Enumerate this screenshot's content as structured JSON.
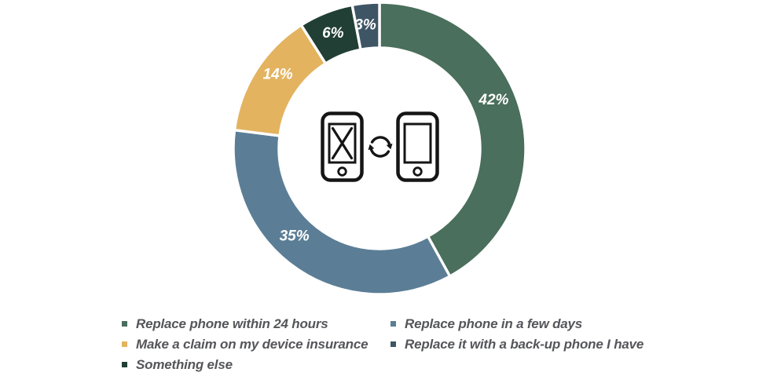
{
  "background": "#ffffff",
  "chart_data": {
    "type": "pie",
    "subtype": "donut",
    "title": "",
    "unit": "%",
    "start_angle_deg": 0,
    "direction": "clockwise",
    "donut_hole_ratio": 0.69,
    "grid": false,
    "legend_position": "bottom",
    "legend_order": [
      0,
      1,
      2,
      4,
      3
    ],
    "center_icon": "broken-phone-sync-replacement",
    "slice_gap_color": "#ffffff",
    "data_label_color": "#ffffff",
    "series": [
      {
        "label": "Replace phone within 24 hours",
        "value": 42,
        "data_label": "42%",
        "color": "#4a6f5c"
      },
      {
        "label": "Replace phone in a few days",
        "value": 35,
        "data_label": "35%",
        "color": "#5b7e96"
      },
      {
        "label": "Make a claim on my device insurance",
        "value": 14,
        "data_label": "14%",
        "color": "#e3b360"
      },
      {
        "label": "Something else",
        "value": 6,
        "data_label": "6%",
        "color": "#213f35"
      },
      {
        "label": "Replace it with a back-up phone I have",
        "value": 3,
        "data_label": "3%",
        "color": "#3e5565"
      }
    ]
  },
  "legend": {
    "text_color": "#55565a"
  }
}
